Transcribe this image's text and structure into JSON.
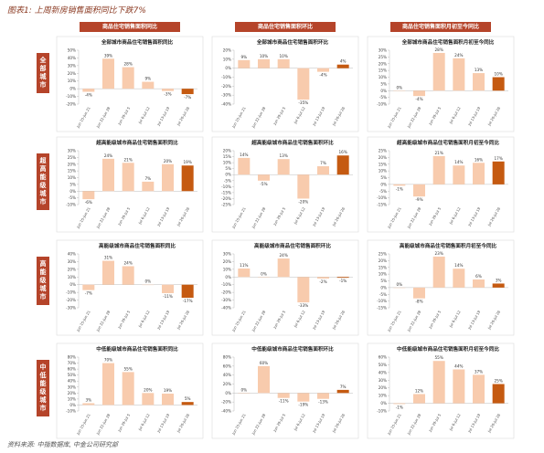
{
  "title": "图表1: 上周新房销售面积同比下跌7%",
  "column_headers": [
    "商品住宅销售面积同比",
    "商品住宅销售面积环比",
    "商品住宅销售面积月初至今同比"
  ],
  "row_labels": [
    "全部城市",
    "超高能级城市",
    "高能级城市",
    "中低能级城市"
  ],
  "source": "资料来源: 中指数据库, 中金公司研究部",
  "chart_data": [
    {
      "type": "bar",
      "title": "全部城市商品住宅销售面积同比",
      "categories": [
        "Jun 15-Jun 21",
        "Jun 22-Jun 28",
        "Jun 29-Jul 5",
        "Jul 6-Jul 12",
        "Jul 13-Jul 19",
        "Jul 20-Jul 26"
      ],
      "values": [
        -4,
        39,
        28,
        9,
        -3,
        -7
      ],
      "value_labels": [
        "-4%",
        "39%",
        "28%",
        "9%",
        "-3%",
        "-7%"
      ],
      "colors": [
        "#f8cbad",
        "#f8cbad",
        "#f8cbad",
        "#f8cbad",
        "#f8cbad",
        "#c55a11"
      ],
      "ylim": [
        -20,
        50
      ],
      "yticks": [
        {
          "value": -20,
          "label": "-20%"
        },
        {
          "value": -10,
          "label": "-10%"
        },
        {
          "value": 0,
          "label": "0%"
        },
        {
          "value": 10,
          "label": "10%"
        },
        {
          "value": 20,
          "label": "20%"
        },
        {
          "value": 30,
          "label": "30%"
        },
        {
          "value": 40,
          "label": "40%"
        },
        {
          "value": 50,
          "label": "50%"
        }
      ]
    },
    {
      "type": "bar",
      "title": "全部城市商品住宅销售面积环比",
      "categories": [
        "Jun 15-Jun 21",
        "Jun 22-Jun 28",
        "Jun 29-Jul 5",
        "Jul 6-Jul 12",
        "Jul 13-Jul 19",
        "Jul 20-Jul 26"
      ],
      "values": [
        9,
        10,
        10,
        -35,
        -4,
        4
      ],
      "value_labels": [
        "9%",
        "10%",
        "10%",
        "-35%",
        "-4%",
        "4%"
      ],
      "colors": [
        "#f8cbad",
        "#f8cbad",
        "#f8cbad",
        "#f8cbad",
        "#f8cbad",
        "#c55a11"
      ],
      "ylim": [
        -40,
        20
      ],
      "yticks": [
        {
          "value": -40,
          "label": "-40%"
        },
        {
          "value": -30,
          "label": "-30%"
        },
        {
          "value": -20,
          "label": "-20%"
        },
        {
          "value": -10,
          "label": "-10%"
        },
        {
          "value": 0,
          "label": "0%"
        },
        {
          "value": 10,
          "label": "10%"
        },
        {
          "value": 20,
          "label": "20%"
        }
      ]
    },
    {
      "type": "bar",
      "title": "全部城市商品住宅销售面积月初至今同比",
      "categories": [
        "Jun 15-Jun 21",
        "Jun 22-Jun 28",
        "Jun 29-Jul 5",
        "Jul 6-Jul 12",
        "Jul 13-Jul 19",
        "Jul 20-Jul 26"
      ],
      "values": [
        0,
        -4,
        28,
        24,
        13,
        10
      ],
      "value_labels": [
        "0%",
        "-4%",
        "28%",
        "24%",
        "13%",
        "10%"
      ],
      "colors": [
        "#f8cbad",
        "#f8cbad",
        "#f8cbad",
        "#f8cbad",
        "#f8cbad",
        "#c55a11"
      ],
      "ylim": [
        -10,
        30
      ],
      "yticks": [
        {
          "value": -10,
          "label": "-10%"
        },
        {
          "value": -5,
          "label": "-5%"
        },
        {
          "value": 0,
          "label": "0%"
        },
        {
          "value": 5,
          "label": "5%"
        },
        {
          "value": 10,
          "label": "10%"
        },
        {
          "value": 15,
          "label": "15%"
        },
        {
          "value": 20,
          "label": "20%"
        },
        {
          "value": 25,
          "label": "25%"
        },
        {
          "value": 30,
          "label": "30%"
        }
      ]
    },
    {
      "type": "bar",
      "title": "超高能级城市商品住宅销售面积同比",
      "categories": [
        "Jun 15-Jun 21",
        "Jun 22-Jun 28",
        "Jun 29-Jul 5",
        "Jul 6-Jul 12",
        "Jul 13-Jul 19",
        "Jul 20-Jul 26"
      ],
      "values": [
        -6,
        24,
        21,
        7,
        20,
        19
      ],
      "value_labels": [
        "-6%",
        "24%",
        "21%",
        "7%",
        "20%",
        "19%"
      ],
      "colors": [
        "#f8cbad",
        "#f8cbad",
        "#f8cbad",
        "#f8cbad",
        "#f8cbad",
        "#c55a11"
      ],
      "ylim": [
        -10,
        30
      ],
      "yticks": [
        {
          "value": -10,
          "label": "-10%"
        },
        {
          "value": -5,
          "label": "-5%"
        },
        {
          "value": 0,
          "label": "0%"
        },
        {
          "value": 5,
          "label": "5%"
        },
        {
          "value": 10,
          "label": "10%"
        },
        {
          "value": 15,
          "label": "15%"
        },
        {
          "value": 20,
          "label": "20%"
        },
        {
          "value": 25,
          "label": "25%"
        },
        {
          "value": 30,
          "label": "30%"
        }
      ]
    },
    {
      "type": "bar",
      "title": "超高能级城市商品住宅销售面积环比",
      "categories": [
        "Jun 15-Jun 21",
        "Jun 22-Jun 28",
        "Jun 29-Jul 5",
        "Jul 6-Jul 12",
        "Jul 13-Jul 19",
        "Jul 20-Jul 26"
      ],
      "values": [
        14,
        -5,
        13,
        -20,
        7,
        16
      ],
      "value_labels": [
        "14%",
        "-5%",
        "13%",
        "-20%",
        "7%",
        "16%"
      ],
      "colors": [
        "#f8cbad",
        "#f8cbad",
        "#f8cbad",
        "#f8cbad",
        "#f8cbad",
        "#c55a11"
      ],
      "ylim": [
        -25,
        20
      ],
      "yticks": [
        {
          "value": -25,
          "label": "-25%"
        },
        {
          "value": -20,
          "label": "-20%"
        },
        {
          "value": -15,
          "label": "-15%"
        },
        {
          "value": -10,
          "label": "-10%"
        },
        {
          "value": -5,
          "label": "-5%"
        },
        {
          "value": 0,
          "label": "0%"
        },
        {
          "value": 5,
          "label": "5%"
        },
        {
          "value": 10,
          "label": "10%"
        },
        {
          "value": 15,
          "label": "15%"
        },
        {
          "value": 20,
          "label": "20%"
        }
      ]
    },
    {
      "type": "bar",
      "title": "超高能级城市商品住宅销售面积月初至今同比",
      "categories": [
        "Jun 15-Jun 21",
        "Jun 22-Jun 28",
        "Jun 29-Jul 5",
        "Jul 6-Jul 12",
        "Jul 13-Jul 19",
        "Jul 20-Jul 26"
      ],
      "values": [
        -1,
        -9,
        21,
        14,
        16,
        17
      ],
      "value_labels": [
        "-1%",
        "-9%",
        "21%",
        "14%",
        "16%",
        "17%"
      ],
      "colors": [
        "#f8cbad",
        "#f8cbad",
        "#f8cbad",
        "#f8cbad",
        "#f8cbad",
        "#c55a11"
      ],
      "ylim": [
        -15,
        25
      ],
      "yticks": [
        {
          "value": -15,
          "label": "-15%"
        },
        {
          "value": -10,
          "label": "-10%"
        },
        {
          "value": -5,
          "label": "-5%"
        },
        {
          "value": 0,
          "label": "0%"
        },
        {
          "value": 5,
          "label": "5%"
        },
        {
          "value": 10,
          "label": "10%"
        },
        {
          "value": 15,
          "label": "15%"
        },
        {
          "value": 20,
          "label": "20%"
        },
        {
          "value": 25,
          "label": "25%"
        }
      ]
    },
    {
      "type": "bar",
      "title": "高能级城市商品住宅销售面积同比",
      "categories": [
        "Jun 15-Jun 21",
        "Jun 22-Jun 28",
        "Jun 29-Jul 5",
        "Jul 6-Jul 12",
        "Jul 13-Jul 19",
        "Jul 20-Jul 26"
      ],
      "values": [
        -7,
        31,
        24,
        0,
        -11,
        -17
      ],
      "value_labels": [
        "-7%",
        "31%",
        "24%",
        "0%",
        "-11%",
        "-17%"
      ],
      "colors": [
        "#f8cbad",
        "#f8cbad",
        "#f8cbad",
        "#f8cbad",
        "#f8cbad",
        "#c55a11"
      ],
      "ylim": [
        -30,
        40
      ],
      "yticks": [
        {
          "value": -30,
          "label": "-30%"
        },
        {
          "value": -20,
          "label": "-20%"
        },
        {
          "value": -10,
          "label": "-10%"
        },
        {
          "value": 0,
          "label": "0%"
        },
        {
          "value": 10,
          "label": "10%"
        },
        {
          "value": 20,
          "label": "20%"
        },
        {
          "value": 30,
          "label": "30%"
        },
        {
          "value": 40,
          "label": "40%"
        }
      ]
    },
    {
      "type": "bar",
      "title": "高能级城市商品住宅销售面积环比",
      "categories": [
        "Jun 15-Jun 21",
        "Jun 22-Jun 28",
        "Jun 29-Jul 5",
        "Jul 6-Jul 12",
        "Jul 13-Jul 19",
        "Jul 20-Jul 26"
      ],
      "values": [
        11,
        0,
        24,
        -33,
        -2,
        -1
      ],
      "value_labels": [
        "11%",
        "0%",
        "24%",
        "-33%",
        "-2%",
        "-1%"
      ],
      "colors": [
        "#f8cbad",
        "#f8cbad",
        "#f8cbad",
        "#f8cbad",
        "#f8cbad",
        "#c55a11"
      ],
      "ylim": [
        -40,
        30
      ],
      "yticks": [
        {
          "value": -40,
          "label": "-40%"
        },
        {
          "value": -30,
          "label": "-30%"
        },
        {
          "value": -20,
          "label": "-20%"
        },
        {
          "value": -10,
          "label": "-10%"
        },
        {
          "value": 0,
          "label": "0%"
        },
        {
          "value": 10,
          "label": "10%"
        },
        {
          "value": 20,
          "label": "20%"
        },
        {
          "value": 30,
          "label": "30%"
        }
      ]
    },
    {
      "type": "bar",
      "title": "高能级城市商品住宅销售面积月初至今同比",
      "categories": [
        "Jun 15-Jun 21",
        "Jun 22-Jun 28",
        "Jun 29-Jul 5",
        "Jul 6-Jul 12",
        "Jul 13-Jul 19",
        "Jul 20-Jul 26"
      ],
      "values": [
        0,
        -8,
        23,
        14,
        6,
        3
      ],
      "value_labels": [
        "0%",
        "-8%",
        "23%",
        "14%",
        "6%",
        "3%"
      ],
      "colors": [
        "#f8cbad",
        "#f8cbad",
        "#f8cbad",
        "#f8cbad",
        "#f8cbad",
        "#c55a11"
      ],
      "ylim": [
        -15,
        25
      ],
      "yticks": [
        {
          "value": -15,
          "label": "-15%"
        },
        {
          "value": -10,
          "label": "-10%"
        },
        {
          "value": -5,
          "label": "-5%"
        },
        {
          "value": 0,
          "label": "0%"
        },
        {
          "value": 5,
          "label": "5%"
        },
        {
          "value": 10,
          "label": "10%"
        },
        {
          "value": 15,
          "label": "15%"
        },
        {
          "value": 20,
          "label": "20%"
        },
        {
          "value": 25,
          "label": "25%"
        }
      ]
    },
    {
      "type": "bar",
      "title": "中低能级城市商品住宅销售面积同比",
      "categories": [
        "Jun 15-Jun 21",
        "Jun 22-Jun 28",
        "Jun 29-Jul 5",
        "Jul 6-Jul 12",
        "Jul 13-Jul 19",
        "Jul 20-Jul 26"
      ],
      "values": [
        3,
        70,
        55,
        20,
        19,
        5
      ],
      "value_labels": [
        "3%",
        "70%",
        "55%",
        "20%",
        "19%",
        "5%"
      ],
      "colors": [
        "#f8cbad",
        "#f8cbad",
        "#f8cbad",
        "#f8cbad",
        "#f8cbad",
        "#c55a11"
      ],
      "ylim": [
        -10,
        80
      ],
      "yticks": [
        {
          "value": -10,
          "label": "-10%"
        },
        {
          "value": 0,
          "label": "0%"
        },
        {
          "value": 10,
          "label": "10%"
        },
        {
          "value": 20,
          "label": "20%"
        },
        {
          "value": 30,
          "label": "30%"
        },
        {
          "value": 40,
          "label": "40%"
        },
        {
          "value": 50,
          "label": "50%"
        },
        {
          "value": 60,
          "label": "60%"
        },
        {
          "value": 70,
          "label": "70%"
        },
        {
          "value": 80,
          "label": "80%"
        }
      ]
    },
    {
      "type": "bar",
      "title": "中低能级城市商品住宅销售面积环比",
      "categories": [
        "Jun 15-Jun 21",
        "Jun 22-Jun 28",
        "Jun 29-Jul 5",
        "Jul 6-Jul 12",
        "Jul 13-Jul 19",
        "Jul 20-Jul 26"
      ],
      "values": [
        0,
        60,
        -11,
        -19,
        -13,
        7
      ],
      "value_labels": [
        "0%",
        "60%",
        "-11%",
        "-19%",
        "-13%",
        "7%"
      ],
      "colors": [
        "#f8cbad",
        "#f8cbad",
        "#f8cbad",
        "#f8cbad",
        "#f8cbad",
        "#c55a11"
      ],
      "ylim": [
        -40,
        80
      ],
      "yticks": [
        {
          "value": -40,
          "label": "-40%"
        },
        {
          "value": -20,
          "label": "-20%"
        },
        {
          "value": 0,
          "label": "0%"
        },
        {
          "value": 20,
          "label": "20%"
        },
        {
          "value": 40,
          "label": "40%"
        },
        {
          "value": 60,
          "label": "60%"
        },
        {
          "value": 80,
          "label": "80%"
        }
      ]
    },
    {
      "type": "bar",
      "title": "中低能级城市商品住宅销售面积月初至今同比",
      "categories": [
        "Jun 15-Jun 21",
        "Jun 22-Jun 28",
        "Jun 29-Jul 5",
        "Jul 6-Jul 12",
        "Jul 13-Jul 19",
        "Jul 20-Jul 26"
      ],
      "values": [
        -1,
        12,
        55,
        44,
        37,
        25
      ],
      "value_labels": [
        "-1%",
        "12%",
        "55%",
        "44%",
        "37%",
        "25%"
      ],
      "colors": [
        "#f8cbad",
        "#f8cbad",
        "#f8cbad",
        "#f8cbad",
        "#f8cbad",
        "#c55a11"
      ],
      "ylim": [
        -10,
        60
      ],
      "yticks": [
        {
          "value": -10,
          "label": "-10%"
        },
        {
          "value": 0,
          "label": "0%"
        },
        {
          "value": 10,
          "label": "10%"
        },
        {
          "value": 20,
          "label": "20%"
        },
        {
          "value": 30,
          "label": "30%"
        },
        {
          "value": 40,
          "label": "40%"
        },
        {
          "value": 50,
          "label": "50%"
        },
        {
          "value": 60,
          "label": "60%"
        }
      ]
    }
  ]
}
